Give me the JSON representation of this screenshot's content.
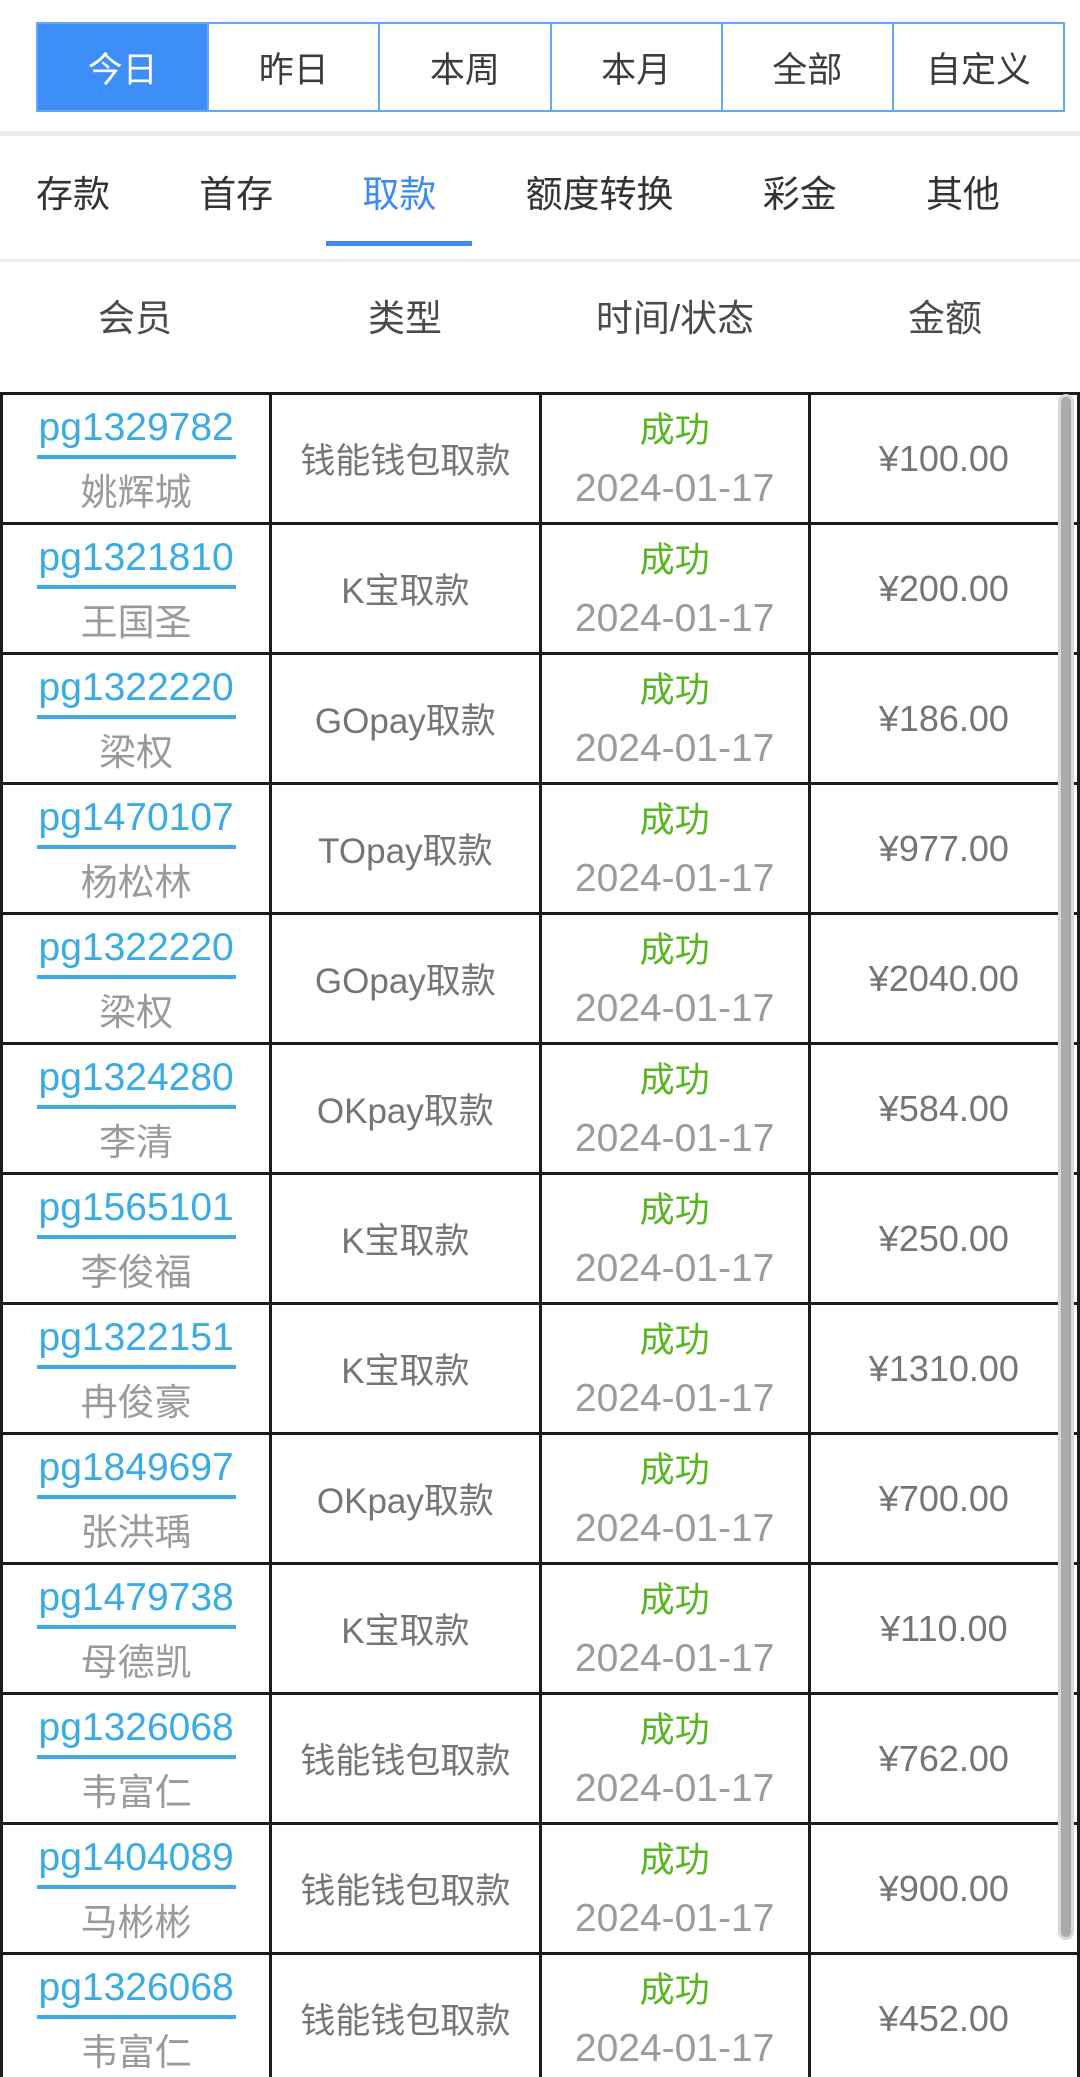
{
  "date_filter": {
    "tabs": [
      {
        "label": "今日",
        "active": true
      },
      {
        "label": "昨日",
        "active": false
      },
      {
        "label": "本周",
        "active": false
      },
      {
        "label": "本月",
        "active": false
      },
      {
        "label": "全部",
        "active": false
      },
      {
        "label": "自定义",
        "active": false
      }
    ]
  },
  "category_nav": {
    "tabs": [
      {
        "label": "存款",
        "active": false
      },
      {
        "label": "首存",
        "active": false
      },
      {
        "label": "取款",
        "active": true
      },
      {
        "label": "额度转换",
        "active": false
      },
      {
        "label": "彩金",
        "active": false
      },
      {
        "label": "其他",
        "active": false
      }
    ]
  },
  "table": {
    "headers": [
      "会员",
      "类型",
      "时间/状态",
      "金额"
    ],
    "rows": [
      {
        "member_id": "pg1329782",
        "member_name": "姚辉城",
        "type": "钱能钱包取款",
        "status": "成功",
        "date": "2024-01-17",
        "amount": "¥100.00"
      },
      {
        "member_id": "pg1321810",
        "member_name": "王国圣",
        "type": "K宝取款",
        "status": "成功",
        "date": "2024-01-17",
        "amount": "¥200.00"
      },
      {
        "member_id": "pg1322220",
        "member_name": "梁权",
        "type": "GOpay取款",
        "status": "成功",
        "date": "2024-01-17",
        "amount": "¥186.00"
      },
      {
        "member_id": "pg1470107",
        "member_name": "杨松林",
        "type": "TOpay取款",
        "status": "成功",
        "date": "2024-01-17",
        "amount": "¥977.00"
      },
      {
        "member_id": "pg1322220",
        "member_name": "梁权",
        "type": "GOpay取款",
        "status": "成功",
        "date": "2024-01-17",
        "amount": "¥2040.00"
      },
      {
        "member_id": "pg1324280",
        "member_name": "李清",
        "type": "OKpay取款",
        "status": "成功",
        "date": "2024-01-17",
        "amount": "¥584.00"
      },
      {
        "member_id": "pg1565101",
        "member_name": "李俊福",
        "type": "K宝取款",
        "status": "成功",
        "date": "2024-01-17",
        "amount": "¥250.00"
      },
      {
        "member_id": "pg1322151",
        "member_name": "冉俊豪",
        "type": "K宝取款",
        "status": "成功",
        "date": "2024-01-17",
        "amount": "¥1310.00"
      },
      {
        "member_id": "pg1849697",
        "member_name": "张洪瑀",
        "type": "OKpay取款",
        "status": "成功",
        "date": "2024-01-17",
        "amount": "¥700.00"
      },
      {
        "member_id": "pg1479738",
        "member_name": "母德凯",
        "type": "K宝取款",
        "status": "成功",
        "date": "2024-01-17",
        "amount": "¥110.00"
      },
      {
        "member_id": "pg1326068",
        "member_name": "韦富仁",
        "type": "钱能钱包取款",
        "status": "成功",
        "date": "2024-01-17",
        "amount": "¥762.00"
      },
      {
        "member_id": "pg1404089",
        "member_name": "马彬彬",
        "type": "钱能钱包取款",
        "status": "成功",
        "date": "2024-01-17",
        "amount": "¥900.00"
      },
      {
        "member_id": "pg1326068",
        "member_name": "韦富仁",
        "type": "钱能钱包取款",
        "status": "成功",
        "date": "2024-01-17",
        "amount": "¥452.00"
      }
    ]
  },
  "colors": {
    "accent_blue": "#3e8ef7",
    "nav_active_blue": "#3e8af0",
    "link_blue": "#3aabe3",
    "status_green": "#55b61e",
    "muted_gray": "#9b9b9b",
    "table_border": "#1c1c1c"
  }
}
